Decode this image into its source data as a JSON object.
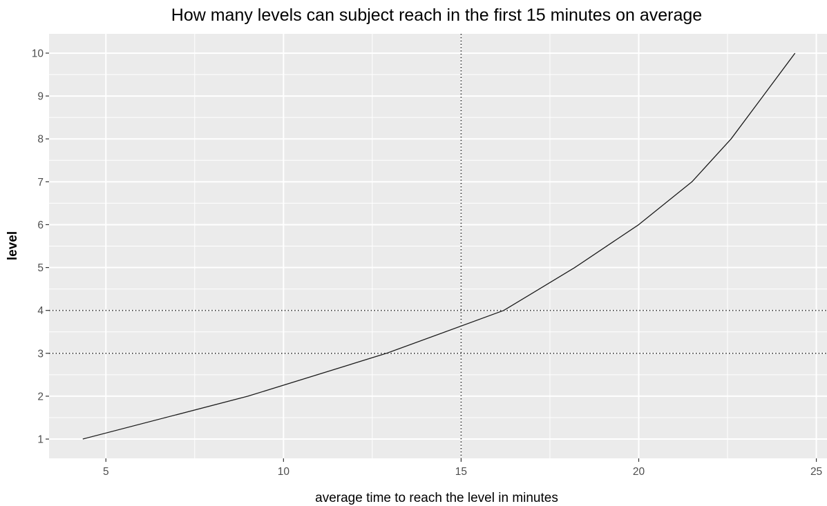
{
  "chart_data": {
    "type": "line",
    "title": "How many levels can subject reach in the first 15 minutes on average",
    "xlabel": "average time to reach the level in minutes",
    "ylabel": "level",
    "xlim": [
      3.4,
      25.3
    ],
    "ylim": [
      0.55,
      10.45
    ],
    "x_ticks": [
      "5",
      "10",
      "15",
      "20",
      "25"
    ],
    "y_ticks": [
      "1",
      "2",
      "3",
      "4",
      "5",
      "6",
      "7",
      "8",
      "9",
      "10"
    ],
    "series": [
      {
        "x": [
          4.35,
          9.0,
          12.9,
          16.2,
          18.2,
          20.0,
          21.5,
          22.6,
          23.5,
          24.4
        ],
        "y": [
          1,
          2,
          3,
          4,
          5,
          6,
          7,
          8,
          9,
          10
        ]
      }
    ],
    "reference_lines": {
      "vertical_x": [
        15
      ],
      "horizontal_y": [
        3,
        4
      ]
    },
    "grid": true,
    "legend": "none",
    "colors": {
      "panel_background": "#ebebeb",
      "grid_line": "#ffffff",
      "series_line": "#1a1a1a",
      "reference_line": "#333333",
      "tick_label": "#4d4d4d",
      "text": "#000000"
    }
  }
}
